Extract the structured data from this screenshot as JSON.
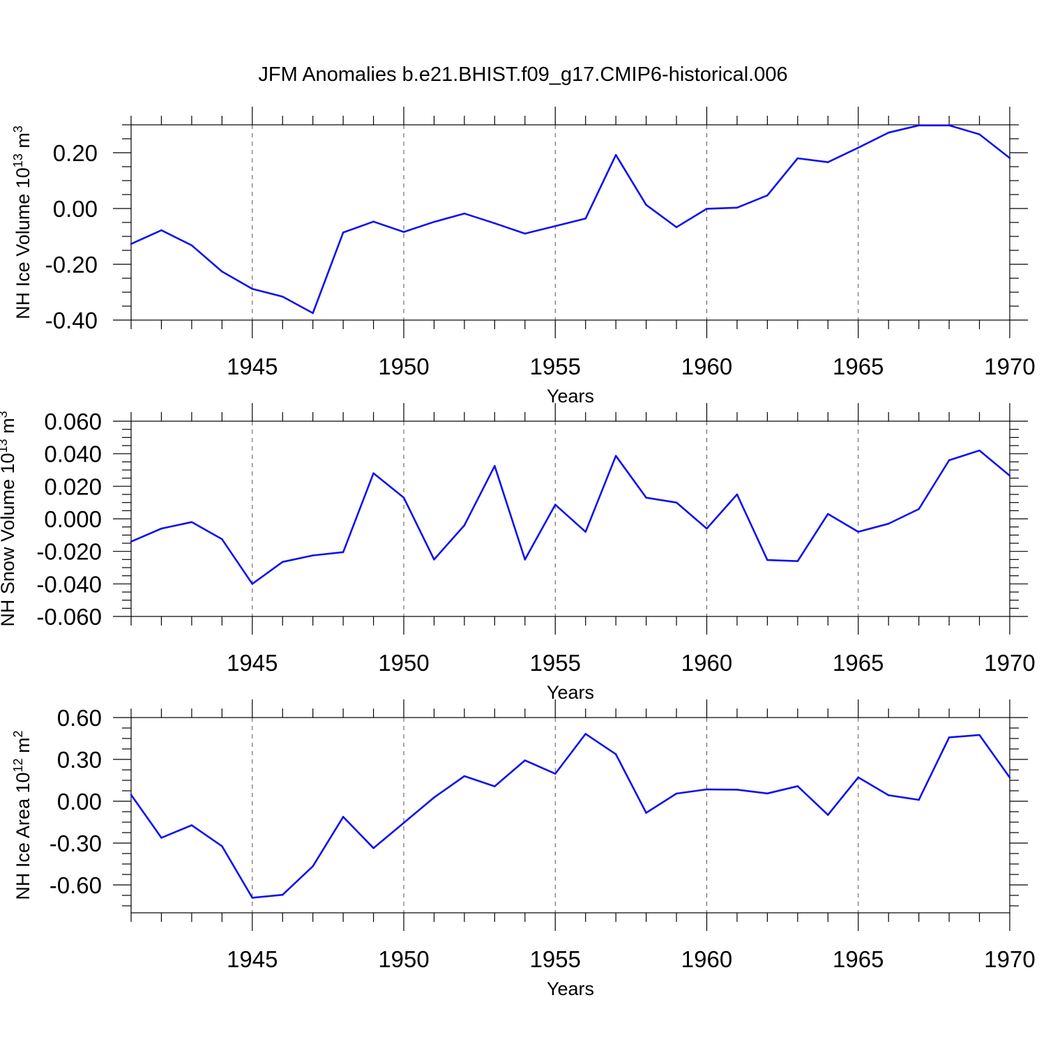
{
  "figure_title": "JFM Anomalies b.e21.BHIST.f09_g17.CMIP6-historical.006",
  "chart_data": [
    {
      "type": "line",
      "id": "ice-volume",
      "ylabel_main": "NH Ice Volume 10",
      "ylabel_exp": "13",
      "ylabel_unit": " m",
      "ylabel_unit_exp": "3",
      "xlabel": "Years",
      "xlim": [
        1941,
        1970
      ],
      "ylim": [
        -0.4,
        0.3
      ],
      "xticks": [
        1945,
        1950,
        1955,
        1960,
        1965,
        1970
      ],
      "xtick_labels": [
        "1945",
        "1950",
        "1955",
        "1960",
        "1965",
        "1970"
      ],
      "yticks": [
        -0.4,
        -0.2,
        0.0,
        0.2
      ],
      "ytick_labels": [
        "-0.40",
        "-0.20",
        "0.00",
        "0.20"
      ],
      "yminor": [
        -0.35,
        -0.3,
        -0.25,
        -0.15,
        -0.1,
        -0.05,
        0.05,
        0.1,
        0.15,
        0.25,
        0.3
      ],
      "color": "#1010ee",
      "x": [
        1941,
        1942,
        1943,
        1944,
        1945,
        1946,
        1947,
        1948,
        1949,
        1950,
        1951,
        1952,
        1953,
        1954,
        1955,
        1956,
        1957,
        1958,
        1959,
        1960,
        1961,
        1962,
        1963,
        1964,
        1965,
        1966,
        1967,
        1968,
        1969,
        1970
      ],
      "values": [
        -0.127,
        -0.078,
        -0.132,
        -0.226,
        -0.288,
        -0.316,
        -0.375,
        -0.086,
        -0.047,
        -0.084,
        -0.048,
        -0.018,
        -0.053,
        -0.09,
        -0.063,
        -0.036,
        0.192,
        0.013,
        -0.067,
        -0.001,
        0.003,
        0.047,
        0.18,
        0.166,
        0.218,
        0.272,
        0.298,
        0.298,
        0.266,
        0.181
      ]
    },
    {
      "type": "line",
      "id": "snow-volume",
      "ylabel_main": "NH Snow Volume 10",
      "ylabel_exp": "13",
      "ylabel_unit": " m",
      "ylabel_unit_exp": "3",
      "xlabel": "Years",
      "xlim": [
        1941,
        1970
      ],
      "ylim": [
        -0.06,
        0.06
      ],
      "xticks": [
        1945,
        1950,
        1955,
        1960,
        1965,
        1970
      ],
      "xtick_labels": [
        "1945",
        "1950",
        "1955",
        "1960",
        "1965",
        "1970"
      ],
      "yticks": [
        -0.06,
        -0.04,
        -0.02,
        0.0,
        0.02,
        0.04,
        0.06
      ],
      "ytick_labels": [
        "-0.060",
        "-0.040",
        "-0.020",
        "0.000",
        "0.020",
        "0.040",
        "0.060"
      ],
      "yminor": [
        -0.055,
        -0.05,
        -0.045,
        -0.035,
        -0.03,
        -0.025,
        -0.015,
        -0.01,
        -0.005,
        0.005,
        0.01,
        0.015,
        0.025,
        0.03,
        0.035,
        0.045,
        0.05,
        0.055
      ],
      "color": "#1010ee",
      "x": [
        1941,
        1942,
        1943,
        1944,
        1945,
        1946,
        1947,
        1948,
        1949,
        1950,
        1951,
        1952,
        1953,
        1954,
        1955,
        1956,
        1957,
        1958,
        1959,
        1960,
        1961,
        1962,
        1963,
        1964,
        1965,
        1966,
        1967,
        1968,
        1969,
        1970
      ],
      "values": [
        -0.014,
        -0.006,
        -0.002,
        -0.0125,
        -0.04,
        -0.0265,
        -0.0225,
        -0.0205,
        0.028,
        0.013,
        -0.025,
        -0.004,
        0.0325,
        -0.025,
        0.0087,
        -0.008,
        0.0387,
        0.013,
        0.01,
        -0.006,
        0.015,
        -0.0253,
        -0.026,
        0.003,
        -0.008,
        -0.003,
        0.006,
        0.036,
        0.042,
        0.0265
      ]
    },
    {
      "type": "line",
      "id": "ice-area",
      "ylabel_main": "NH Ice Area 10",
      "ylabel_exp": "12",
      "ylabel_unit": " m",
      "ylabel_unit_exp": "2",
      "xlabel": "Years",
      "xlim": [
        1941,
        1970
      ],
      "ylim": [
        -0.8,
        0.6
      ],
      "xticks": [
        1945,
        1950,
        1955,
        1960,
        1965,
        1970
      ],
      "xtick_labels": [
        "1945",
        "1950",
        "1955",
        "1960",
        "1965",
        "1970"
      ],
      "yticks": [
        -0.6,
        -0.3,
        0.0,
        0.3,
        0.6
      ],
      "ytick_labels": [
        "-0.60",
        "-0.30",
        "0.00",
        "0.30",
        "0.60"
      ],
      "yminor": [
        -0.75,
        -0.675,
        -0.525,
        -0.45,
        -0.375,
        -0.225,
        -0.15,
        -0.075,
        0.075,
        0.15,
        0.225,
        0.375,
        0.45,
        0.525
      ],
      "color": "#1010ee",
      "x": [
        1941,
        1942,
        1943,
        1944,
        1945,
        1946,
        1947,
        1948,
        1949,
        1950,
        1951,
        1952,
        1953,
        1954,
        1955,
        1956,
        1957,
        1958,
        1959,
        1960,
        1961,
        1962,
        1963,
        1964,
        1965,
        1966,
        1967,
        1968,
        1969,
        1970
      ],
      "values": [
        0.046,
        -0.262,
        -0.172,
        -0.322,
        -0.692,
        -0.671,
        -0.466,
        -0.112,
        -0.336,
        -0.155,
        0.027,
        0.18,
        0.107,
        0.293,
        0.197,
        0.483,
        0.337,
        -0.083,
        0.055,
        0.085,
        0.083,
        0.056,
        0.108,
        -0.098,
        0.171,
        0.043,
        0.01,
        0.458,
        0.475,
        0.17
      ]
    }
  ]
}
